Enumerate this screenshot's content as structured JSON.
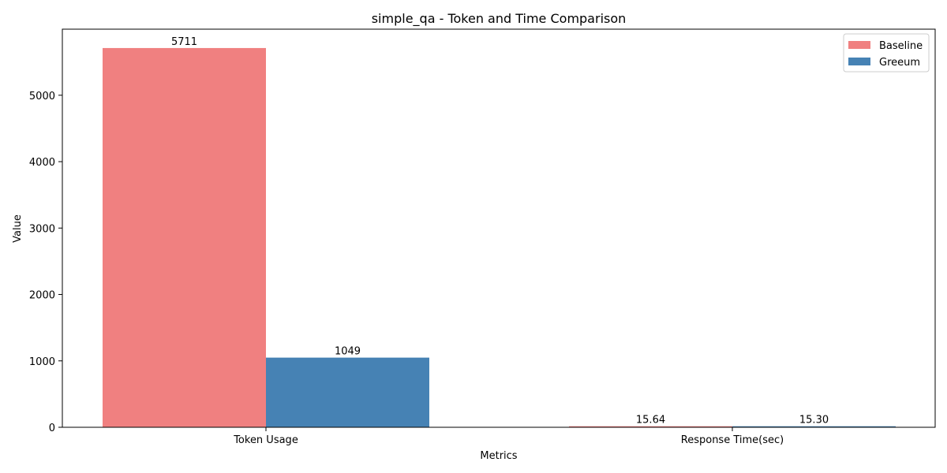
{
  "chart_data": {
    "type": "bar",
    "title": "simple_qa - Token and Time Comparison",
    "xlabel": "Metrics",
    "ylabel": "Value",
    "categories": [
      "Token Usage",
      "Response Time(sec)"
    ],
    "series": [
      {
        "name": "Baseline",
        "values": [
          5711,
          15.64
        ],
        "labels": [
          "5711",
          "15.64"
        ],
        "color": "#f08080"
      },
      {
        "name": "Greeum",
        "values": [
          1049,
          15.3
        ],
        "labels": [
          "1049",
          "15.30"
        ],
        "color": "#4682b4"
      }
    ],
    "ylim": [
      0,
      5995
    ],
    "yticks": [
      0,
      1000,
      2000,
      3000,
      4000,
      5000
    ],
    "legend": "top-right",
    "grid": false
  }
}
